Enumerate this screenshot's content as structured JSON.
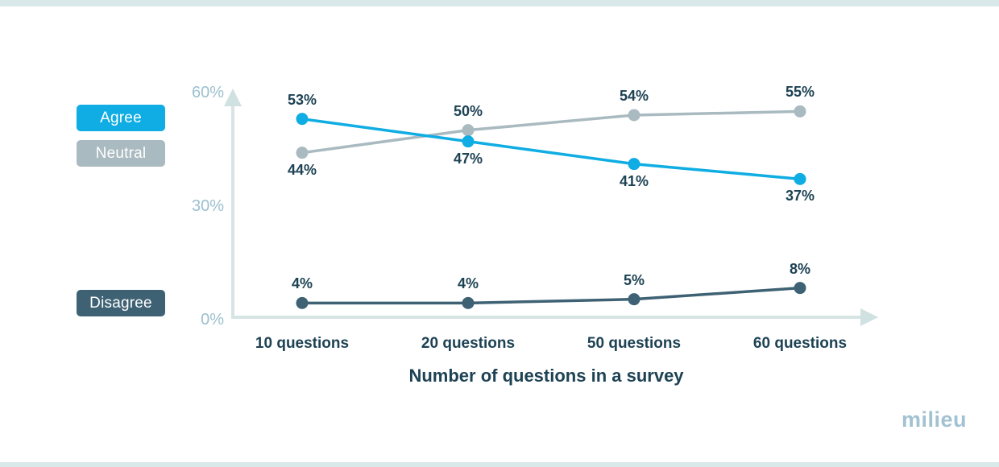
{
  "page": {
    "background_color": "#ffffff",
    "top_strip_color": "#d9e8e9",
    "bottom_strip_color": "#d9e8e9",
    "brand_logo_text": "milieu",
    "brand_logo_color": "#a2c1d1"
  },
  "axis": {
    "line_color": "#d6e5e4",
    "arrow_color": "#cfe1e0",
    "tick_label_color": "#9cc0cf",
    "data_label_color": "#1d4254"
  },
  "chart_data": {
    "type": "line",
    "title": "",
    "xlabel": "Number of questions in a survey",
    "ylabel": "",
    "categories": [
      "10 questions",
      "20 questions",
      "50 questions",
      "60 questions"
    ],
    "ylim": [
      0,
      60
    ],
    "ytick_labels": [
      "0%",
      "30%",
      "60%"
    ],
    "grid": false,
    "legend_position": "left",
    "value_suffix": "%",
    "series": [
      {
        "name": "Agree",
        "color": "#0fade3",
        "values": [
          53,
          47,
          41,
          37
        ],
        "label_side": [
          "above",
          "below",
          "below",
          "below"
        ]
      },
      {
        "name": "Neutral",
        "color": "#a9bac0",
        "values": [
          44,
          50,
          54,
          55
        ],
        "label_side": [
          "below",
          "above",
          "above",
          "above"
        ]
      },
      {
        "name": "Disagree",
        "color": "#3e6274",
        "values": [
          4,
          4,
          5,
          8
        ],
        "label_side": [
          "above",
          "above",
          "above",
          "above"
        ]
      }
    ]
  }
}
